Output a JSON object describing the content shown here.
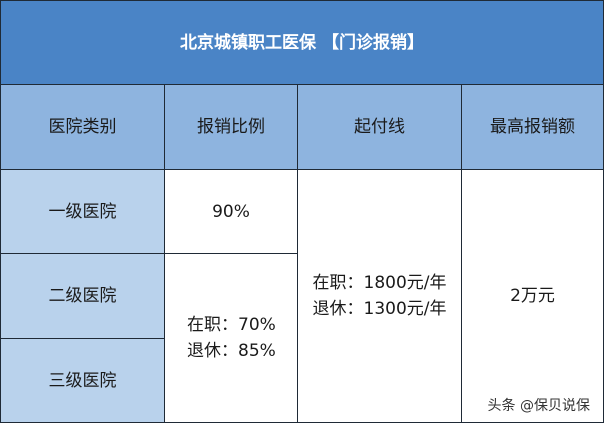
{
  "title": "北京城镇职工医保 【门诊报销】",
  "headers": [
    "医院类别",
    "报销比例",
    "起付线",
    "最高报销额"
  ],
  "hospital_levels": [
    "一级医院",
    "二级医院",
    "三级医院"
  ],
  "ratio_level1": "90%",
  "ratio_level23": [
    "在职：70%",
    "退休：85%"
  ],
  "deductible": [
    "在职：1800元/年",
    "退休：1300元/年"
  ],
  "max_reimbursement": "2万元",
  "watermark": "头条 @保贝说保",
  "colors": {
    "title_bg": "#4a84c6",
    "header_bg": "#8eb4df",
    "category_bg": "#b9d2ec"
  }
}
